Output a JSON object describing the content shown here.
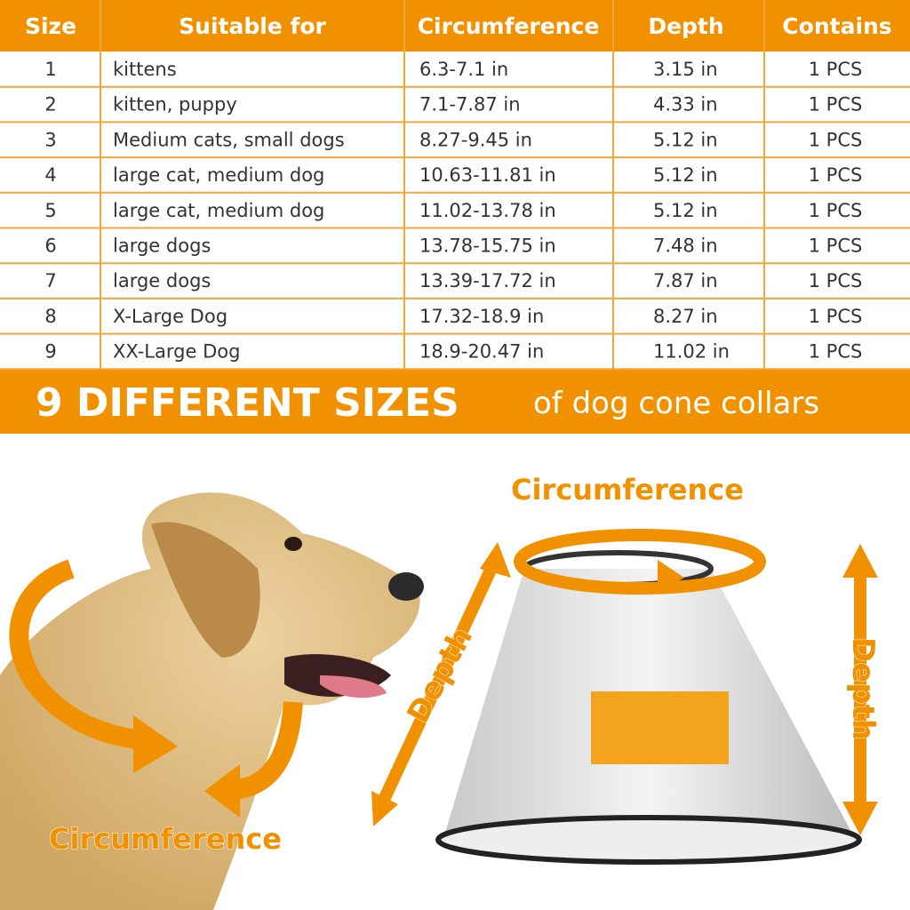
{
  "table": {
    "header": [
      "Size",
      "Suitable for",
      "Circumference",
      "Depth",
      "Contains"
    ],
    "rows": [
      [
        "1",
        "kittens",
        "6.3-7.1 in",
        "3.15 in",
        "1 PCS"
      ],
      [
        "2",
        "kitten, puppy",
        "7.1-7.87 in",
        "4.33 in",
        "1 PCS"
      ],
      [
        "3",
        "Medium cats, small dogs",
        "8.27-9.45 in",
        "5.12 in",
        "1 PCS"
      ],
      [
        "4",
        "large cat, medium dog",
        "10.63-11.81 in",
        "5.12 in",
        "1 PCS"
      ],
      [
        "5",
        "large cat, medium dog",
        "11.02-13.78 in",
        "5.12 in",
        "1 PCS"
      ],
      [
        "6",
        "large dogs",
        "13.78-15.75 in",
        "7.48 in",
        "1 PCS"
      ],
      [
        "7",
        "large dogs",
        "13.39-17.72 in",
        "7.87 in",
        "1 PCS"
      ],
      [
        "8",
        "X-Large Dog",
        "17.32-18.9 in",
        "8.27 in",
        "1 PCS"
      ],
      [
        "9",
        "XX-Large Dog",
        "18.9-20.47 in",
        "11.02 in",
        "1 PCS"
      ]
    ]
  },
  "banner": {
    "bold": "9 DIFFERENT SIZES",
    "light": "of dog cone collars"
  },
  "diagram": {
    "dog_label": "Circumference",
    "cone_top_label": "Circumference",
    "cone_side_label": "Depth",
    "cone_height_label": "Depth"
  }
}
